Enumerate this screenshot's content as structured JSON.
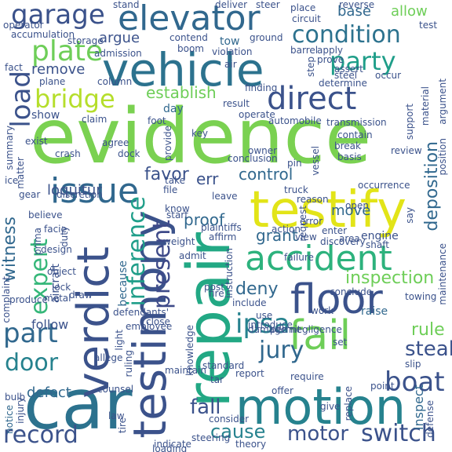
{
  "words": {
    "evidence": "evidence",
    "car": "car",
    "testify": "testify",
    "repair": "repair",
    "vehicle": "vehicle",
    "motion": "motion",
    "testimony": "testimony",
    "verdict": "verdict",
    "accident": "accident",
    "floor": "floor",
    "fail": "fail",
    "issue": "issue",
    "elevator": "elevator",
    "direct": "direct",
    "condition": "condition",
    "plate": "plate",
    "party": "party",
    "bridge": "bridge",
    "garage": "garage",
    "load": "load",
    "inference": "inference",
    "present": "present",
    "expert": "expert",
    "part": "part",
    "door": "door",
    "record": "record",
    "switch": "switch",
    "motor": "motor",
    "boat": "boat",
    "jury": "jury",
    "ipsa": "ipsa",
    "cause": "cause",
    "fall": "fall",
    "steal": "steal",
    "rule": "rule",
    "deny": "deny",
    "grant": "grant",
    "control": "control",
    "proof": "proof",
    "witness": "witness",
    "deposition": "deposition",
    "inspection": "inspection",
    "favor": "favor",
    "err": "err",
    "loquitur": "loquitur",
    "defect": "defect",
    "establish": "establish",
    "remove": "remove",
    "argue": "argue",
    "base": "base",
    "allow": "allow",
    "accumulation": "accumulation",
    "move": "move",
    "follow": "follow",
    "engine": "engine",
    "inspect": "inspect",
    "because": "because",
    "aircraft": "aircraft",
    "day": "day",
    "show": "show",
    "tow": "tow",
    "raise": "raise",
    "damage": "damage",
    "use": "use",
    "consider": "consider",
    "maintain": "maintain",
    "report": "report",
    "review": "review",
    "slip": "slip",
    "give": "give",
    "offer": "offer",
    "require": "require",
    "know": "know",
    "file": "file",
    "leave": "leave",
    "close": "close",
    "crash": "crash",
    "dock": "dock",
    "vessel": "vessel",
    "break": "break",
    "ground": "ground",
    "contend": "contend",
    "boom": "boom",
    "claim": "claim",
    "operate": "operate",
    "determine": "determine",
    "discretion": "discretion",
    "enter": "enter",
    "towing": "towing",
    "take": "take",
    "truck": "truck",
    "open": "open",
    "prove": "prove",
    "occur": "occur",
    "failure": "failure",
    "admit": "admit",
    "notice": "notice",
    "produce": "produce",
    "light": "light",
    "allege": "allege",
    "set": "set",
    "point": "point",
    "replace": "replace",
    "indicate": "indicate",
    "negligence": "negligence",
    "permit": "permit",
    "introduce": "introduce",
    "knowledge": "knowledge",
    "standard": "standard",
    "conclude": "conclude",
    "view": "view",
    "action": "action",
    "post": "post",
    "shaft": "shaft",
    "area": "area",
    "discovery": "discovery",
    "support": "support",
    "result": "result",
    "automobile": "automobile",
    "provide": "provide",
    "plane": "plane",
    "column": "column",
    "apply": "apply",
    "barrel": "barrel",
    "violation": "violation",
    "air": "air",
    "admission": "admission",
    "storage": "storage",
    "operator": "operator",
    "circuit": "circuit",
    "test": "test",
    "place": "place",
    "reverse": "reverse",
    "deliver": "deliver",
    "steer": "steer",
    "stand": "stand",
    "basis": "basis",
    "conclusion": "conclusion",
    "pin": "pin",
    "owner": "owner",
    "maintenance": "maintenance",
    "position": "position",
    "argument": "argument",
    "material": "material",
    "matter": "matter",
    "summary": "summary",
    "ice": "ice",
    "believe": "believe",
    "lock": "lock",
    "metal": "metal",
    "weight": "weight",
    "plaintiffs": "plaintiffs",
    "instruction": "instruction",
    "affirm": "affirm",
    "error": "error",
    "reason": "reason",
    "occurrence": "occurrence",
    "agree": "agree",
    "foot": "foot",
    "contain": "contain",
    "transmission": "transmission",
    "finding": "finding",
    "assert": "assert",
    "steel": "steel",
    "step": "step",
    "key": "key",
    "start": "start",
    "request": "request",
    "theory": "theory",
    "loading": "loading",
    "law": "law",
    "tire": "tire",
    "ruling": "ruling",
    "counsel": "counsel",
    "employee": "employee",
    "defendants": "defendants'",
    "draw": "draw",
    "fire": "fire",
    "include": "include",
    "work": "work",
    "bulb": "bulb",
    "injury": "injury",
    "defense": "defense",
    "tar": "tar",
    "object": "object",
    "exist": "exist",
    "prima": "prima",
    "facie": "facie",
    "complaint": "complaint",
    "design": "design",
    "duty": "duty",
    "say": "say",
    "steering": "steering",
    "gear": "gear",
    "fact": "fact"
  },
  "colors": {
    "purple": "#440154",
    "indigo": "#472c7a",
    "blue": "#3b528b",
    "slate": "#31688e",
    "teal": "#26828e",
    "sea": "#1f9e89",
    "green": "#35b779",
    "lime": "#6ece58",
    "light": "#b5de2b",
    "yellow": "#e6e419",
    "background": "#ffffff"
  }
}
